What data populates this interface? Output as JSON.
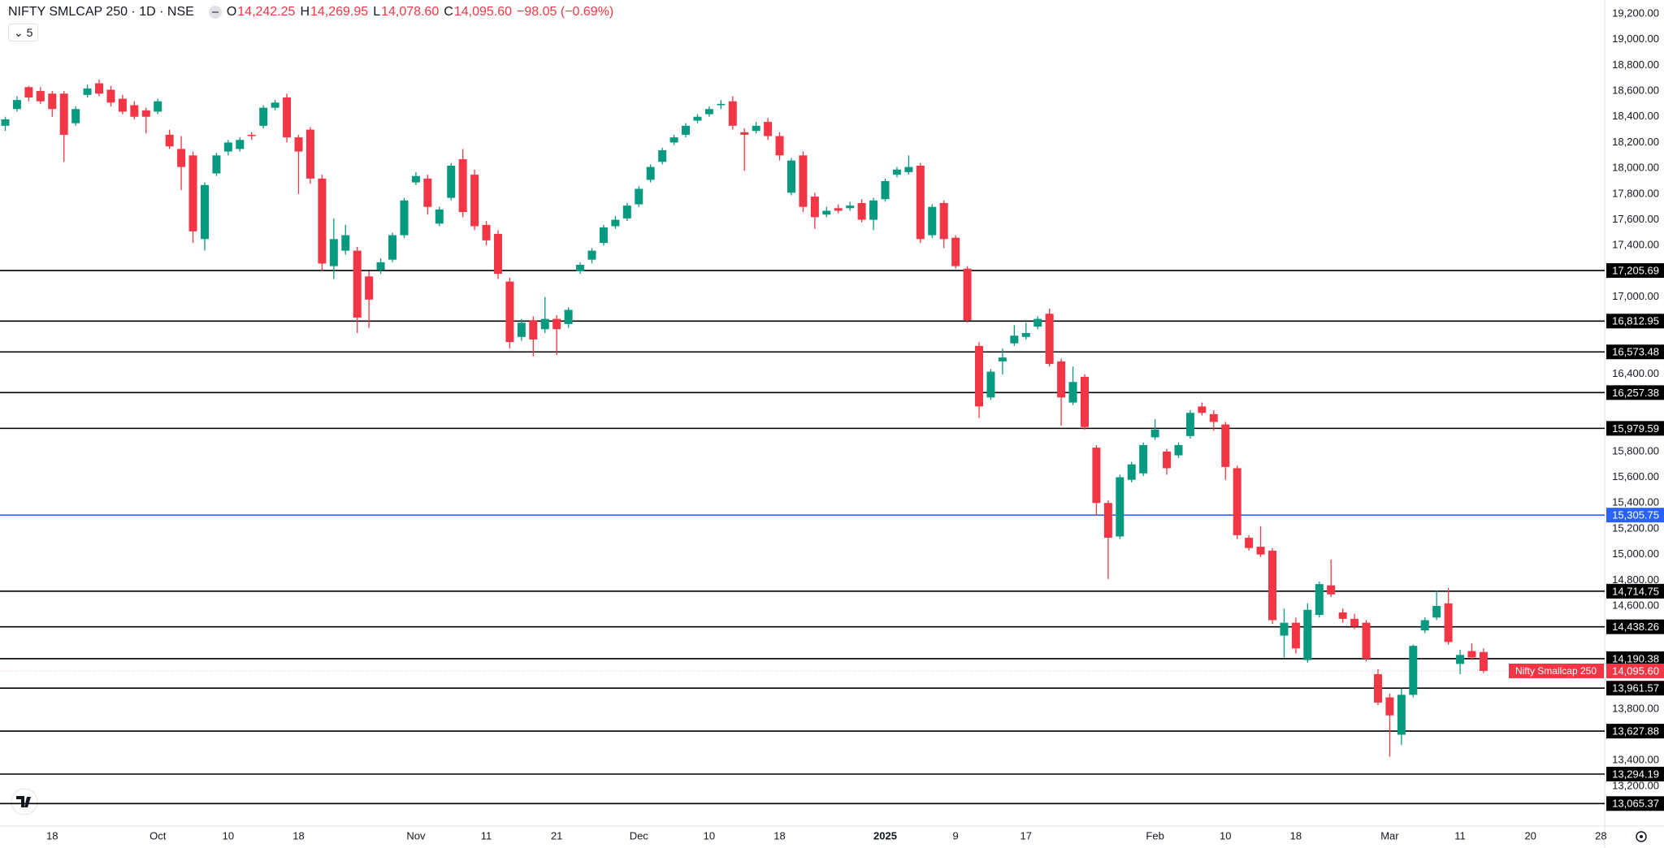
{
  "header": {
    "title": "NIFTY SMLCAP 250 · 1D · NSE",
    "ohlc": [
      {
        "key": "O",
        "value": "14,242.25"
      },
      {
        "key": "H",
        "value": "14,269.95"
      },
      {
        "key": "L",
        "value": "14,078.60"
      },
      {
        "key": "C",
        "value": "14,095.60"
      }
    ],
    "change": "−98.05 (−0.69%)",
    "indicator_count": "5"
  },
  "chart_data": {
    "type": "candlestick",
    "categories": [
      null,
      null,
      null,
      null,
      "18",
      null,
      null,
      null,
      null,
      null,
      null,
      null,
      null,
      "Oct",
      null,
      null,
      null,
      null,
      null,
      "10",
      null,
      null,
      null,
      null,
      null,
      "18",
      null,
      null,
      null,
      null,
      null,
      null,
      null,
      null,
      null,
      "Nov",
      null,
      null,
      null,
      null,
      null,
      "11",
      null,
      null,
      null,
      null,
      null,
      "21",
      null,
      null,
      null,
      null,
      null,
      null,
      "Dec",
      null,
      null,
      null,
      null,
      null,
      "10",
      null,
      null,
      null,
      null,
      null,
      "18",
      null,
      null,
      null,
      null,
      null,
      null,
      null,
      null,
      "2025",
      null,
      null,
      null,
      null,
      null,
      "9",
      null,
      null,
      null,
      null,
      null,
      "17",
      null,
      null,
      null,
      null,
      null,
      null,
      null,
      null,
      null,
      null,
      "Feb",
      null,
      null,
      null,
      null,
      null,
      "10",
      null,
      null,
      null,
      null,
      null,
      "18",
      null,
      null,
      null,
      null,
      null,
      null,
      null,
      "Mar",
      null,
      null,
      null,
      null,
      null,
      "11",
      null,
      null,
      null,
      null,
      null,
      "20",
      null,
      null,
      null,
      null,
      null,
      "28"
    ],
    "open": [
      18330,
      18460,
      18630,
      18600,
      18580,
      18580,
      18350,
      18570,
      18660,
      18610,
      18540,
      18490,
      18450,
      18440,
      18260,
      18150,
      18100,
      17450,
      17960,
      18130,
      18150,
      18260,
      18330,
      18470,
      18550,
      18240,
      18300,
      17920,
      17240,
      17360,
      17360,
      17160,
      17210,
      17290,
      17480,
      17890,
      17920,
      17570,
      17770,
      18070,
      17950,
      17560,
      17490,
      17120,
      16690,
      16820,
      16750,
      16830,
      16790,
      17200,
      17290,
      17420,
      17550,
      17610,
      17720,
      17910,
      18050,
      18200,
      18260,
      18370,
      18420,
      18490,
      18520,
      18280,
      18290,
      18360,
      18250,
      17810,
      18100,
      17780,
      17640,
      17690,
      17690,
      17730,
      17600,
      17760,
      17950,
      17970,
      18020,
      17480,
      17730,
      17460,
      17220,
      16620,
      16220,
      16500,
      16640,
      16690,
      16770,
      16870,
      16500,
      16180,
      16380,
      15830,
      15400,
      15140,
      15580,
      15630,
      15910,
      15800,
      15770,
      15920,
      16150,
      16090,
      16010,
      15670,
      15130,
      15060,
      15030,
      14370,
      14470,
      14180,
      14530,
      14760,
      14550,
      14500,
      14470,
      14070,
      13890,
      13600,
      13910,
      14410,
      14510,
      14620,
      14150,
      14250,
      14242.25,
      null,
      null,
      null,
      null,
      null,
      null,
      null,
      null,
      null,
      null
    ],
    "high": [
      18400,
      18560,
      18640,
      18630,
      18600,
      18600,
      18480,
      18650,
      18690,
      18640,
      18570,
      18520,
      18470,
      18540,
      18300,
      18250,
      18130,
      17890,
      18120,
      18220,
      18240,
      18280,
      18490,
      18530,
      18580,
      18260,
      18320,
      17950,
      17610,
      17560,
      17390,
      17200,
      17300,
      17500,
      17770,
      17970,
      17950,
      17700,
      18040,
      18150,
      17990,
      17590,
      17520,
      17150,
      16830,
      16850,
      17000,
      16860,
      16920,
      17270,
      17380,
      17560,
      17630,
      17730,
      17860,
      18030,
      18160,
      18260,
      18350,
      18420,
      18480,
      18530,
      18560,
      18310,
      18360,
      18390,
      18280,
      18080,
      18130,
      17810,
      17700,
      17720,
      17740,
      17760,
      17770,
      17920,
      18010,
      18100,
      18040,
      17720,
      17750,
      17480,
      17240,
      16650,
      16440,
      16600,
      16780,
      16800,
      16850,
      16910,
      16520,
      16460,
      16400,
      15850,
      15420,
      15620,
      15720,
      15870,
      16050,
      15820,
      15870,
      16120,
      16180,
      16120,
      16030,
      15690,
      15150,
      15220,
      15050,
      14580,
      14510,
      14620,
      14790,
      14960,
      14580,
      14540,
      14490,
      14110,
      13920,
      13960,
      14300,
      14510,
      14720,
      14740,
      14260,
      14310,
      14269.95,
      null,
      null,
      null,
      null,
      null,
      null,
      null,
      null,
      null,
      null
    ],
    "low": [
      18290,
      18440,
      18520,
      18500,
      18400,
      18050,
      18330,
      18550,
      18560,
      18480,
      18420,
      18380,
      18270,
      18420,
      18150,
      17830,
      17420,
      17360,
      17940,
      18100,
      18130,
      18220,
      18310,
      18450,
      18200,
      17800,
      17880,
      17200,
      17140,
      17330,
      16720,
      16760,
      17180,
      17270,
      17460,
      17870,
      17640,
      17550,
      17750,
      17620,
      17520,
      17400,
      17140,
      16600,
      16660,
      16540,
      16720,
      16550,
      16760,
      17180,
      17260,
      17400,
      17530,
      17590,
      17700,
      17890,
      18030,
      18180,
      18240,
      18350,
      18400,
      18460,
      18300,
      17980,
      18270,
      18220,
      18060,
      17790,
      17660,
      17530,
      17620,
      17650,
      17670,
      17580,
      17520,
      17740,
      17930,
      17950,
      17420,
      17460,
      17380,
      17220,
      16800,
      16060,
      16200,
      16400,
      16620,
      16670,
      16750,
      16460,
      16000,
      16160,
      15970,
      15300,
      14810,
      15120,
      15560,
      15610,
      15890,
      15620,
      15750,
      15900,
      16080,
      15960,
      15580,
      15120,
      15030,
      14980,
      14460,
      14200,
      14230,
      14160,
      14510,
      14670,
      14470,
      14420,
      14170,
      13830,
      13430,
      13520,
      13890,
      14390,
      14490,
      14300,
      14070,
      14180,
      14078.6,
      null,
      null,
      null,
      null,
      null,
      null,
      null,
      null,
      null,
      null
    ],
    "close": [
      18380,
      18530,
      18550,
      18520,
      18460,
      18260,
      18460,
      18620,
      18580,
      18510,
      18440,
      18400,
      18400,
      18520,
      18170,
      18010,
      17510,
      17870,
      18100,
      18200,
      18220,
      18250,
      18470,
      18510,
      18240,
      18130,
      17920,
      17260,
      17450,
      17480,
      16840,
      16980,
      17270,
      17480,
      17750,
      17940,
      17700,
      17680,
      18020,
      17660,
      17550,
      17440,
      17180,
      16650,
      16800,
      16670,
      16830,
      16750,
      16900,
      17250,
      17360,
      17540,
      17600,
      17710,
      17840,
      18010,
      18140,
      18240,
      18330,
      18400,
      18460,
      18500,
      18330,
      18260,
      18330,
      18250,
      18100,
      18060,
      17700,
      17620,
      17670,
      17670,
      17710,
      17600,
      17750,
      17900,
      17990,
      18010,
      17450,
      17700,
      17450,
      17240,
      16820,
      16150,
      16420,
      16530,
      16700,
      16720,
      16830,
      16480,
      16220,
      16340,
      15990,
      15400,
      15130,
      15600,
      15700,
      15850,
      15970,
      15670,
      15850,
      16100,
      16100,
      16030,
      15680,
      15150,
      15050,
      15000,
      14490,
      14470,
      14270,
      14570,
      14770,
      14690,
      14500,
      14440,
      14190,
      13850,
      13750,
      13910,
      14290,
      14490,
      14600,
      14320,
      14220,
      14200,
      14095.6,
      null,
      null,
      null,
      null,
      null,
      null,
      null,
      null,
      null,
      null
    ],
    "up_color": "#089981",
    "down_color": "#f23645",
    "ylim": [
      12903,
      19307
    ],
    "yticks": [
      {
        "value": 19200,
        "label": "19,200.00"
      },
      {
        "value": 19000,
        "label": "19,000.00"
      },
      {
        "value": 18800,
        "label": "18,800.00"
      },
      {
        "value": 18600,
        "label": "18,600.00"
      },
      {
        "value": 18400,
        "label": "18,400.00"
      },
      {
        "value": 18200,
        "label": "18,200.00"
      },
      {
        "value": 18000,
        "label": "18,000.00"
      },
      {
        "value": 17800,
        "label": "17,800.00"
      },
      {
        "value": 17600,
        "label": "17,600.00"
      },
      {
        "value": 17400,
        "label": "17,400.00"
      },
      {
        "value": 17000,
        "label": "17,000.00"
      },
      {
        "value": 16400,
        "label": "16,400.00"
      },
      {
        "value": 15800,
        "label": "15,800.00"
      },
      {
        "value": 15600,
        "label": "15,600.00"
      },
      {
        "value": 15400,
        "label": "15,400.00"
      },
      {
        "value": 15200,
        "label": "15,200.00"
      },
      {
        "value": 15000,
        "label": "15,000.00"
      },
      {
        "value": 14800,
        "label": "14,800.00"
      },
      {
        "value": 14600,
        "label": "14,600.00"
      },
      {
        "value": 13800,
        "label": "13,800.00"
      },
      {
        "value": 13400,
        "label": "13,400.00"
      },
      {
        "value": 13200,
        "label": "13,200.00"
      }
    ],
    "grid": false,
    "levels": [
      {
        "value": 17205.69,
        "label": "17,205.69",
        "color": "#000000"
      },
      {
        "value": 16812.95,
        "label": "16,812.95",
        "color": "#000000"
      },
      {
        "value": 16573.48,
        "label": "16,573.48",
        "color": "#000000"
      },
      {
        "value": 16257.38,
        "label": "16,257.38",
        "color": "#000000"
      },
      {
        "value": 15979.59,
        "label": "15,979.59",
        "color": "#000000"
      },
      {
        "value": 15305.75,
        "label": "15,305.75",
        "color": "#2962ff"
      },
      {
        "value": 14714.75,
        "label": "14,714.75",
        "color": "#000000"
      },
      {
        "value": 14438.26,
        "label": "14,438.26",
        "color": "#000000"
      },
      {
        "value": 14190.38,
        "label": "14,190.38",
        "color": "#000000"
      },
      {
        "value": 13961.57,
        "label": "13,961.57",
        "color": "#000000"
      },
      {
        "value": 13627.88,
        "label": "13,627.88",
        "color": "#000000"
      },
      {
        "value": 13294.19,
        "label": "13,294.19",
        "color": "#000000"
      },
      {
        "value": 13065.37,
        "label": "13,065.37",
        "color": "#000000"
      }
    ],
    "last_price": {
      "name": "Nifty Smallcap 250",
      "value": 14095.6,
      "label": "14,095.60",
      "color": "#f23645"
    }
  }
}
